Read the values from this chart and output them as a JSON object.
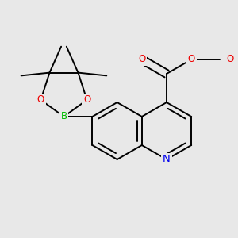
{
  "bg_color": "#e8e8e8",
  "bond_color": "#000000",
  "bond_lw": 1.4,
  "atom_colors": {
    "N": "#0000ee",
    "O": "#ee0000",
    "B": "#00bb00",
    "C": "#000000"
  },
  "font_size": 8.5,
  "fig_size": [
    3.0,
    3.0
  ],
  "dpi": 100
}
